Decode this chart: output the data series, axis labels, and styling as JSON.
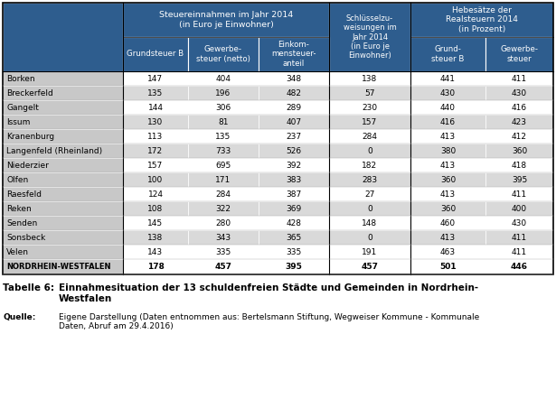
{
  "rows": [
    {
      "city": "Borken",
      "grundsteuer_b": 147,
      "gewerbesteuer": 404,
      "einkommensteuer": 348,
      "schlussel": 138,
      "hebesatz_grund": 441,
      "hebesatz_gewerbe": 411
    },
    {
      "city": "Breckerfeld",
      "grundsteuer_b": 135,
      "gewerbesteuer": 196,
      "einkommensteuer": 482,
      "schlussel": 57,
      "hebesatz_grund": 430,
      "hebesatz_gewerbe": 430
    },
    {
      "city": "Gangelt",
      "grundsteuer_b": 144,
      "gewerbesteuer": 306,
      "einkommensteuer": 289,
      "schlussel": 230,
      "hebesatz_grund": 440,
      "hebesatz_gewerbe": 416
    },
    {
      "city": "Issum",
      "grundsteuer_b": 130,
      "gewerbesteuer": 81,
      "einkommensteuer": 407,
      "schlussel": 157,
      "hebesatz_grund": 416,
      "hebesatz_gewerbe": 423
    },
    {
      "city": "Kranenburg",
      "grundsteuer_b": 113,
      "gewerbesteuer": 135,
      "einkommensteuer": 237,
      "schlussel": 284,
      "hebesatz_grund": 413,
      "hebesatz_gewerbe": 412
    },
    {
      "city": "Langenfeld (Rheinland)",
      "grundsteuer_b": 172,
      "gewerbesteuer": 733,
      "einkommensteuer": 526,
      "schlussel": 0,
      "hebesatz_grund": 380,
      "hebesatz_gewerbe": 360
    },
    {
      "city": "Niederzier",
      "grundsteuer_b": 157,
      "gewerbesteuer": 695,
      "einkommensteuer": 392,
      "schlussel": 182,
      "hebesatz_grund": 413,
      "hebesatz_gewerbe": 418
    },
    {
      "city": "Olfen",
      "grundsteuer_b": 100,
      "gewerbesteuer": 171,
      "einkommensteuer": 383,
      "schlussel": 283,
      "hebesatz_grund": 360,
      "hebesatz_gewerbe": 395
    },
    {
      "city": "Raesfeld",
      "grundsteuer_b": 124,
      "gewerbesteuer": 284,
      "einkommensteuer": 387,
      "schlussel": 27,
      "hebesatz_grund": 413,
      "hebesatz_gewerbe": 411
    },
    {
      "city": "Reken",
      "grundsteuer_b": 108,
      "gewerbesteuer": 322,
      "einkommensteuer": 369,
      "schlussel": 0,
      "hebesatz_grund": 360,
      "hebesatz_gewerbe": 400
    },
    {
      "city": "Senden",
      "grundsteuer_b": 145,
      "gewerbesteuer": 280,
      "einkommensteuer": 428,
      "schlussel": 148,
      "hebesatz_grund": 460,
      "hebesatz_gewerbe": 430
    },
    {
      "city": "Sonsbeck",
      "grundsteuer_b": 138,
      "gewerbesteuer": 343,
      "einkommensteuer": 365,
      "schlussel": 0,
      "hebesatz_grund": 413,
      "hebesatz_gewerbe": 411
    },
    {
      "city": "Velen",
      "grundsteuer_b": 143,
      "gewerbesteuer": 335,
      "einkommensteuer": 335,
      "schlussel": 191,
      "hebesatz_grund": 463,
      "hebesatz_gewerbe": 411
    }
  ],
  "total": {
    "city": "NORDRHEIN-WESTFALEN",
    "grundsteuer_b": 178,
    "gewerbesteuer": 457,
    "einkommensteuer": 395,
    "schlussel": 457,
    "hebesatz_grund": 501,
    "hebesatz_gewerbe": 446
  },
  "header_bg": "#2E5D8E",
  "header_text_color": "#FFFFFF",
  "city_col_bg": "#C8C8C8",
  "row_even_bg": "#FFFFFF",
  "row_odd_bg": "#D9D9D9",
  "total_row_city_bg": "#C8C8C8",
  "total_row_data_bg": "#FFFFFF",
  "caption_bold": "Tabelle 6:",
  "caption_text": "Einnahmesituation der 13 schuldenfreien Städte und Gemeinden in Nordrhein-\nWestfalen",
  "source_bold": "Quelle:",
  "source_text": "Eigene Darstellung (Daten entnommen aus: Bertelsmann Stiftung, Wegweiser Kommune - Kommunale\nDaten, Abruf am 29.4.2016)"
}
